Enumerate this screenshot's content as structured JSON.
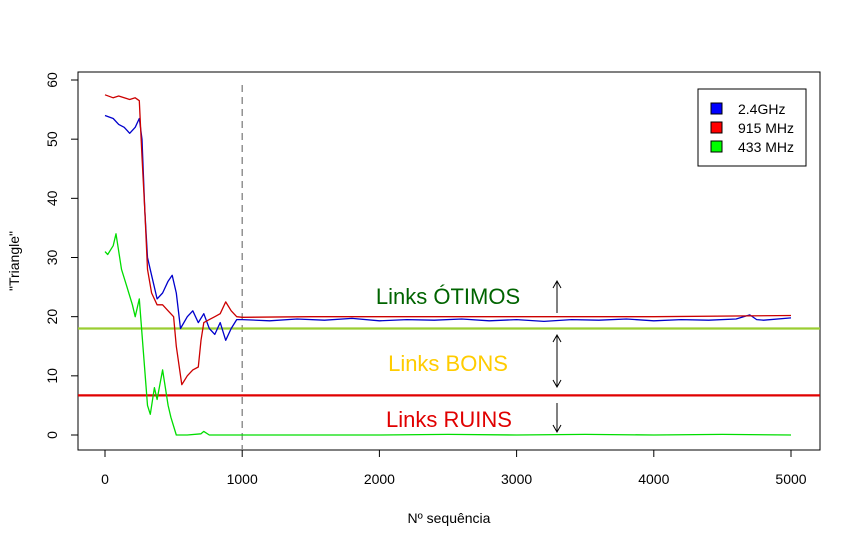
{
  "chart_data": {
    "type": "line",
    "title": "",
    "xlabel": "Nº sequência",
    "ylabel": "\"Triangle\"",
    "xlim": [
      0,
      5000
    ],
    "ylim": [
      0,
      60
    ],
    "x_ticks": [
      "0",
      "1000",
      "2000",
      "3000",
      "4000",
      "5000"
    ],
    "y_ticks": [
      "0",
      "10",
      "20",
      "30",
      "40",
      "50",
      "60"
    ],
    "grid": false,
    "legend_position": "top-right",
    "series": [
      {
        "name": "2.4GHz",
        "color": "#0000cc",
        "x": [
          0,
          60,
          100,
          140,
          180,
          220,
          250,
          270,
          290,
          310,
          340,
          380,
          420,
          460,
          490,
          520,
          550,
          600,
          640,
          680,
          720,
          760,
          800,
          840,
          880,
          920,
          960,
          1000,
          1200,
          1400,
          1600,
          1800,
          2000,
          2200,
          2400,
          2600,
          2800,
          3000,
          3200,
          3400,
          3600,
          3800,
          4000,
          4200,
          4400,
          4600,
          4700,
          4750,
          4800,
          5000
        ],
        "y": [
          54,
          53.5,
          52.5,
          52,
          51,
          52,
          53.5,
          50,
          38,
          30,
          27,
          23,
          24,
          26,
          27,
          24,
          18,
          20,
          21,
          19,
          20.5,
          18,
          17,
          19,
          16,
          18,
          19.5,
          19.5,
          19.3,
          19.6,
          19.4,
          19.7,
          19.3,
          19.5,
          19.4,
          19.6,
          19.3,
          19.5,
          19.2,
          19.5,
          19.4,
          19.6,
          19.3,
          19.5,
          19.4,
          19.6,
          20.3,
          19.5,
          19.4,
          19.8
        ]
      },
      {
        "name": "915 MHz",
        "color": "#cc0000",
        "x": [
          0,
          60,
          100,
          140,
          180,
          220,
          250,
          270,
          290,
          310,
          340,
          380,
          420,
          460,
          500,
          520,
          560,
          600,
          640,
          680,
          700,
          720,
          760,
          800,
          840,
          880,
          920,
          960,
          1000,
          1500,
          2000,
          3000,
          4000,
          5000
        ],
        "y": [
          57.5,
          57,
          57.3,
          57,
          56.7,
          57,
          56.5,
          47,
          38,
          28,
          24,
          22,
          22,
          21,
          20,
          15,
          8.5,
          10,
          11,
          11.5,
          16,
          19,
          19.5,
          20,
          20.5,
          22.5,
          21,
          20,
          19.9,
          20,
          20,
          20,
          20,
          20.2
        ]
      },
      {
        "name": "433 MHz",
        "color": "#00dd00",
        "x": [
          0,
          20,
          60,
          80,
          120,
          160,
          200,
          220,
          250,
          280,
          310,
          330,
          360,
          380,
          420,
          460,
          480,
          520,
          560,
          600,
          700,
          720,
          760,
          1000,
          1500,
          2000,
          2500,
          3000,
          3500,
          4000,
          4500,
          5000
        ],
        "y": [
          31,
          30.5,
          32,
          34,
          28,
          25,
          22,
          20,
          23,
          14,
          5,
          3.5,
          8,
          6,
          11,
          5,
          3,
          0,
          0,
          0,
          0.2,
          0.6,
          0,
          0,
          0,
          0,
          0.1,
          0,
          0.1,
          0,
          0.1,
          0
        ]
      }
    ],
    "reference_lines": [
      {
        "orientation": "vertical",
        "x": 1000,
        "color": "#808080",
        "style": "dashed"
      },
      {
        "orientation": "horizontal",
        "y": 18,
        "color": "#9acd32",
        "style": "solid"
      },
      {
        "orientation": "horizontal",
        "y": 6.7,
        "color": "#e00000",
        "style": "solid"
      }
    ],
    "annotations": [
      {
        "text": "Links ÓTIMOS",
        "color": "#006400"
      },
      {
        "text": "Links BONS",
        "color": "#ffcc00"
      },
      {
        "text": "Links RUINS",
        "color": "#e00000"
      }
    ]
  }
}
